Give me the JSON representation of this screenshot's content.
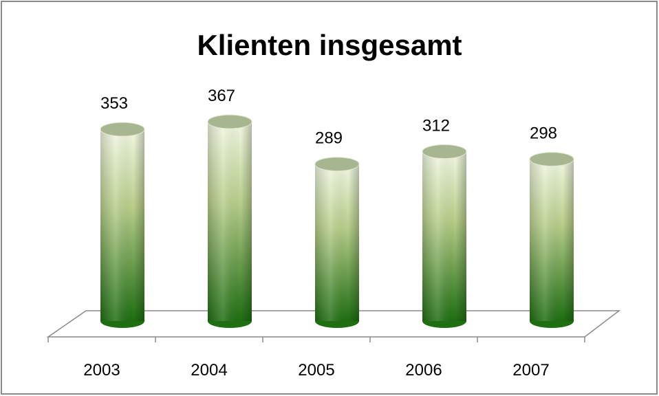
{
  "chart_data": {
    "type": "bar",
    "title": "Klienten insgesamt",
    "categories": [
      "2003",
      "2004",
      "2005",
      "2006",
      "2007"
    ],
    "values": [
      353,
      367,
      289,
      312,
      298
    ],
    "color": "#1f6e12"
  }
}
